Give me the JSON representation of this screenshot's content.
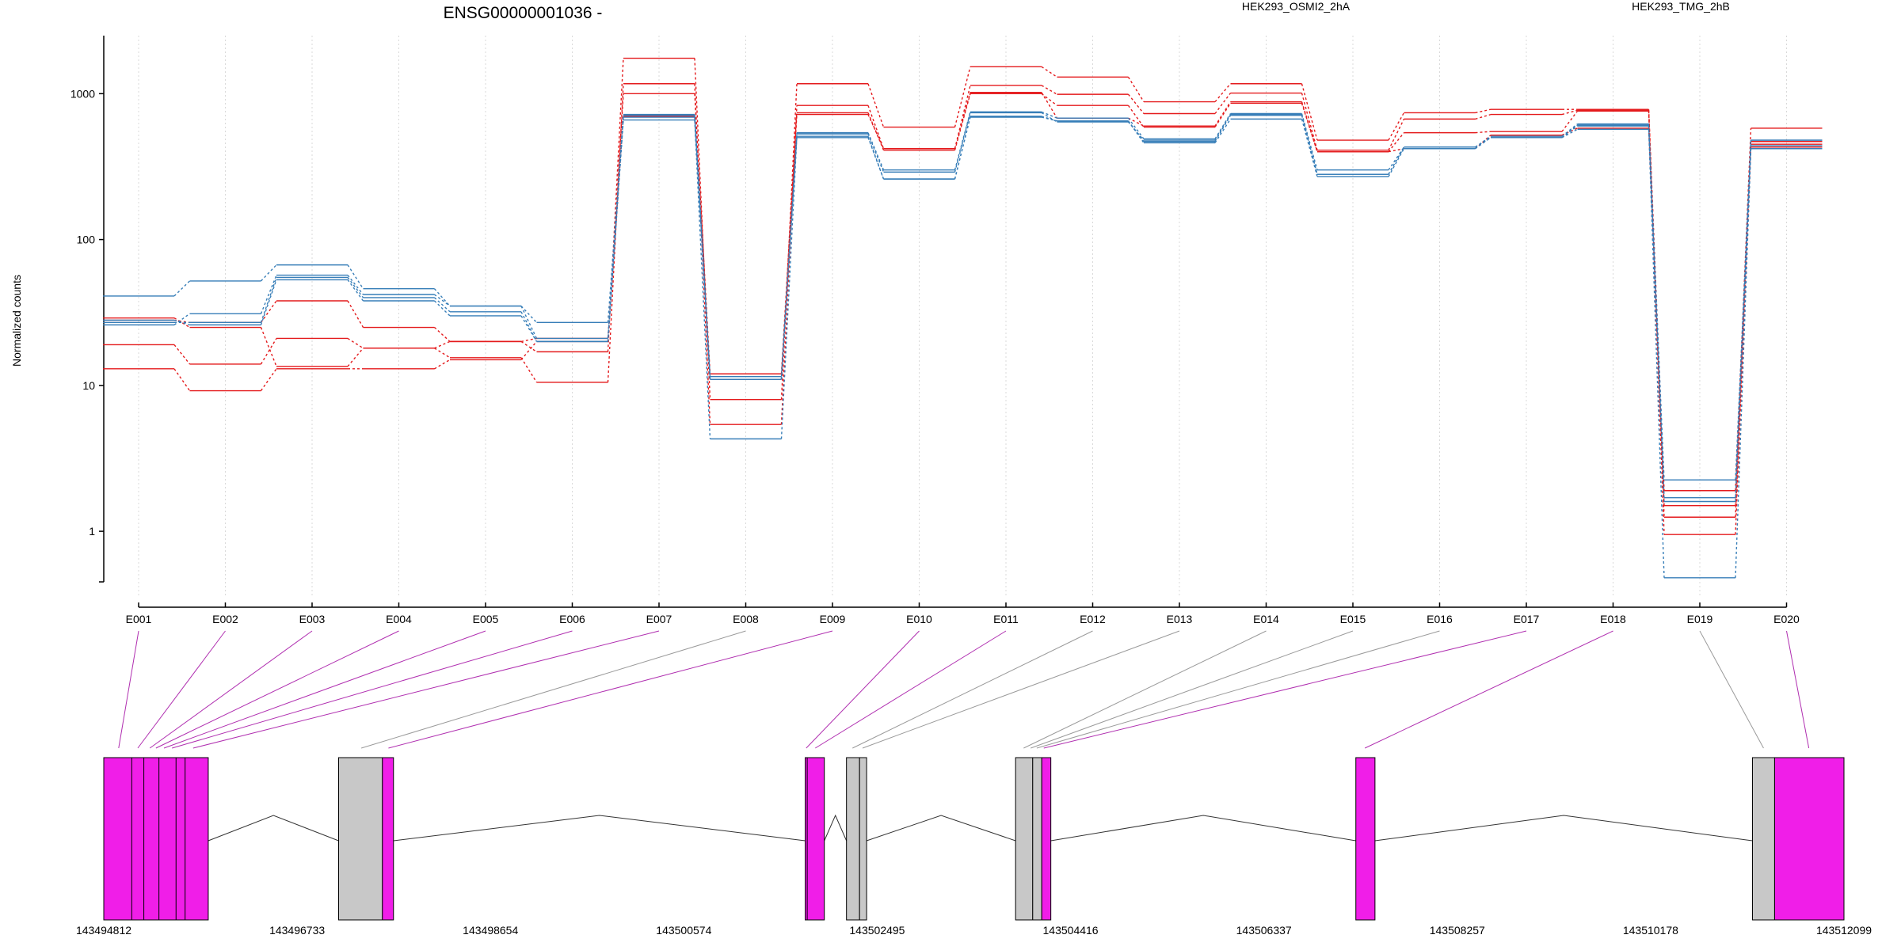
{
  "colors": {
    "group_a": "#e41a1c",
    "group_b": "#377eb8",
    "exon_tested": "#f01ee8",
    "exon_untested": "#c8c8c8",
    "link_tested": "#b02fb0",
    "link_untested": "#9a9a9a",
    "grid": "#d9d9d9"
  },
  "chart_data": {
    "type": "line",
    "title": "ENSG00000001036 -",
    "ylabel": "Normalized counts",
    "xlabel": "",
    "yscale": "log",
    "ylim": [
      0.45,
      2500
    ],
    "grid": "vertical dotted",
    "legend_placement": "top",
    "yticks": [
      1,
      10,
      100,
      1000
    ],
    "ytick_labels": [
      "1",
      "10",
      "100",
      "1000"
    ],
    "categories": [
      "E001",
      "E002",
      "E003",
      "E004",
      "E005",
      "E006",
      "E007",
      "E008",
      "E009",
      "E010",
      "E011",
      "E012",
      "E013",
      "E014",
      "E015",
      "E016",
      "E017",
      "E018",
      "E019",
      "E020"
    ],
    "series": [
      {
        "name": "HEK293_OSMI2_2hA",
        "color": "#e41a1c",
        "values": [
          28,
          27,
          38,
          25,
          20,
          17,
          1750,
          8,
          1170,
          590,
          1530,
          1300,
          880,
          1170,
          480,
          740,
          780,
          780,
          1.9,
          580
        ]
      },
      {
        "name": "",
        "color": "#e41a1c",
        "values": [
          19,
          14,
          21,
          18,
          15.5,
          10.5,
          1170,
          5.4,
          830,
          420,
          1140,
          990,
          730,
          1010,
          410,
          670,
          720,
          770,
          1.25,
          470
        ]
      },
      {
        "name": "",
        "color": "#e41a1c",
        "values": [
          13,
          9.2,
          13,
          13,
          15,
          20,
          1000,
          12,
          740,
          410,
          1000,
          830,
          590,
          860,
          400,
          540,
          550,
          760,
          0.95,
          430
        ]
      },
      {
        "name": "",
        "color": "#e41a1c",
        "values": [
          29,
          25,
          13.5,
          18,
          20,
          21,
          700,
          11,
          720,
          420,
          1020,
          680,
          600,
          880,
          400,
          420,
          520,
          580,
          1.5,
          450
        ]
      },
      {
        "name": "HEK293_TMG_2hB",
        "color": "#377eb8",
        "values": [
          41,
          52,
          67,
          46,
          35,
          27,
          720,
          11.5,
          540,
          300,
          750,
          680,
          490,
          730,
          300,
          430,
          510,
          620,
          2.25,
          480
        ]
      },
      {
        "name": "",
        "color": "#377eb8",
        "values": [
          26,
          31,
          57,
          42,
          35,
          21,
          710,
          11,
          530,
          290,
          740,
          640,
          480,
          720,
          280,
          430,
          500,
          610,
          1.6,
          480
        ]
      },
      {
        "name": "",
        "color": "#377eb8",
        "values": [
          28,
          26,
          53,
          38,
          30,
          20,
          690,
          11,
          510,
          260,
          700,
          650,
          470,
          710,
          280,
          430,
          500,
          600,
          1.7,
          440
        ]
      },
      {
        "name": "",
        "color": "#377eb8",
        "values": [
          27,
          27,
          55,
          40,
          32,
          20,
          660,
          4.3,
          500,
          260,
          690,
          650,
          460,
          670,
          270,
          420,
          500,
          570,
          0.48,
          420
        ]
      }
    ],
    "genome": {
      "start_label": "143494812",
      "end_label": "143512099",
      "tick_labels": [
        "143494812",
        "143496733",
        "143498654",
        "143500574",
        "143502495",
        "143504416",
        "143506337",
        "143508257",
        "143510178",
        "143512099"
      ],
      "exons": [
        {
          "start": 143494812,
          "end": 143495850,
          "tested": true
        },
        {
          "start": 143497145,
          "end": 143497580,
          "tested": false
        },
        {
          "start": 143497580,
          "end": 143497690,
          "tested": true
        },
        {
          "start": 143501780,
          "end": 143501970,
          "tested": true
        },
        {
          "start": 143502190,
          "end": 143502320,
          "tested": false
        },
        {
          "start": 143502320,
          "end": 143502390,
          "tested": false
        },
        {
          "start": 143503870,
          "end": 143504040,
          "tested": false
        },
        {
          "start": 143504040,
          "end": 143504130,
          "tested": false
        },
        {
          "start": 143504130,
          "end": 143504220,
          "tested": true
        },
        {
          "start": 143507250,
          "end": 143507440,
          "tested": true
        },
        {
          "start": 143511190,
          "end": 143511410,
          "tested": false
        },
        {
          "start": 143511410,
          "end": 143512099,
          "tested": true
        }
      ],
      "exon_dividers": [
        143495090,
        143495210,
        143495360,
        143495530,
        143495620,
        143501800
      ],
      "introns": [
        {
          "start": 143495850,
          "end": 143497145
        },
        {
          "start": 143497690,
          "end": 143501780
        },
        {
          "start": 143501970,
          "end": 143502190
        },
        {
          "start": 143502390,
          "end": 143503870
        },
        {
          "start": 143504220,
          "end": 143507250
        },
        {
          "start": 143507440,
          "end": 143511190
        }
      ],
      "feature_links": [
        {
          "bin": "E001",
          "pos": 143494960,
          "tested": true
        },
        {
          "bin": "E002",
          "pos": 143495150,
          "tested": true
        },
        {
          "bin": "E003",
          "pos": 143495270,
          "tested": true
        },
        {
          "bin": "E004",
          "pos": 143495330,
          "tested": true
        },
        {
          "bin": "E005",
          "pos": 143495410,
          "tested": true
        },
        {
          "bin": "E006",
          "pos": 143495490,
          "tested": true
        },
        {
          "bin": "E007",
          "pos": 143495700,
          "tested": true
        },
        {
          "bin": "E008",
          "pos": 143497370,
          "tested": false
        },
        {
          "bin": "E009",
          "pos": 143497640,
          "tested": true
        },
        {
          "bin": "E010",
          "pos": 143501790,
          "tested": true
        },
        {
          "bin": "E011",
          "pos": 143501880,
          "tested": true
        },
        {
          "bin": "E012",
          "pos": 143502250,
          "tested": false
        },
        {
          "bin": "E013",
          "pos": 143502350,
          "tested": false
        },
        {
          "bin": "E014",
          "pos": 143503950,
          "tested": false
        },
        {
          "bin": "E015",
          "pos": 143504020,
          "tested": false
        },
        {
          "bin": "E016",
          "pos": 143504080,
          "tested": false
        },
        {
          "bin": "E017",
          "pos": 143504150,
          "tested": true
        },
        {
          "bin": "E018",
          "pos": 143507340,
          "tested": true
        },
        {
          "bin": "E019",
          "pos": 143511300,
          "tested": false
        },
        {
          "bin": "E020",
          "pos": 143511750,
          "tested": true
        }
      ]
    }
  }
}
